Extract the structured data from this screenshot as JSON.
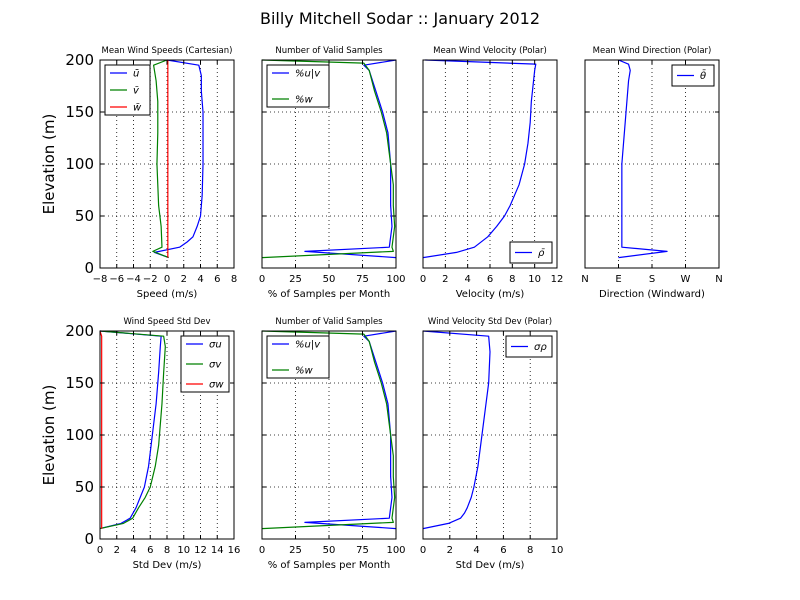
{
  "figure": {
    "title": "Billy Mitchell Sodar :: January 2012"
  },
  "colors": {
    "blue": "#0000ff",
    "green": "#008000",
    "red": "#ff0000",
    "grid": "#000000"
  },
  "chart_data": [
    {
      "id": "p1",
      "type": "line",
      "title": "Mean Wind Speeds (Cartesian)",
      "xlabel": "Speed (m/s)",
      "ylabel": "Elevation (m)",
      "xlim": [
        -8,
        8
      ],
      "ylim": [
        0,
        200
      ],
      "xticks": [
        -8,
        -6,
        -4,
        -2,
        0,
        2,
        4,
        6,
        8
      ],
      "xtick_labels": [
        "−8",
        "−6",
        "−4",
        "−2",
        "0",
        "2",
        "4",
        "6",
        "8"
      ],
      "yticks": [
        0,
        50,
        100,
        150,
        200
      ],
      "ytick_labels": [
        "0",
        "50",
        "100",
        "150",
        "200"
      ],
      "grid": true,
      "legend": "top-left",
      "series": [
        {
          "name": "ū",
          "color": "blue",
          "points": [
            [
              0.2,
              10
            ],
            [
              -1.5,
              15
            ],
            [
              1.5,
              20
            ],
            [
              2.4,
              25
            ],
            [
              3.1,
              30
            ],
            [
              3.6,
              40
            ],
            [
              4,
              50
            ],
            [
              4.2,
              70
            ],
            [
              4.3,
              100
            ],
            [
              4.3,
              130
            ],
            [
              4.3,
              150
            ],
            [
              4.1,
              170
            ],
            [
              4.1,
              185
            ],
            [
              3.8,
              195
            ],
            [
              0,
              200
            ]
          ]
        },
        {
          "name": "v̄",
          "color": "green",
          "points": [
            [
              0.2,
              10
            ],
            [
              -1.7,
              16
            ],
            [
              -0.6,
              20
            ],
            [
              -0.7,
              40
            ],
            [
              -1.0,
              60
            ],
            [
              -1.1,
              80
            ],
            [
              -1.2,
              100
            ],
            [
              -1.1,
              130
            ],
            [
              -1.1,
              160
            ],
            [
              -1.3,
              180
            ],
            [
              -1.6,
              195
            ],
            [
              0,
              200
            ]
          ]
        },
        {
          "name": "w̄",
          "color": "red",
          "points": [
            [
              0.1,
              10
            ],
            [
              0.1,
              50
            ],
            [
              0.1,
              100
            ],
            [
              0.1,
              150
            ],
            [
              0.1,
              200
            ]
          ]
        }
      ]
    },
    {
      "id": "p2",
      "type": "line",
      "title": "Number of Valid Samples",
      "xlabel": "% of Samples per Month",
      "ylabel": "",
      "xlim": [
        0,
        100
      ],
      "ylim": [
        0,
        200
      ],
      "xticks": [
        0,
        25,
        50,
        75,
        100
      ],
      "xtick_labels": [
        "0",
        "25",
        "50",
        "75",
        "100"
      ],
      "yticks": [
        0,
        50,
        100,
        150,
        200
      ],
      "ytick_labels": [],
      "grid": true,
      "legend": "top-left",
      "series": [
        {
          "name": "%u|v",
          "color": "blue",
          "points": [
            [
              100,
              10
            ],
            [
              32,
              16
            ],
            [
              95,
              20
            ],
            [
              97,
              40
            ],
            [
              96,
              60
            ],
            [
              96,
              80
            ],
            [
              96,
              100
            ],
            [
              94,
              130
            ],
            [
              90,
              150
            ],
            [
              85,
              170
            ],
            [
              80,
              190
            ],
            [
              76,
              195
            ],
            [
              100,
              200
            ]
          ]
        },
        {
          "name": "%w",
          "color": "green",
          "points": [
            [
              0,
              10
            ],
            [
              98,
              16
            ],
            [
              97,
              20
            ],
            [
              99,
              40
            ],
            [
              98,
              60
            ],
            [
              98,
              80
            ],
            [
              96,
              100
            ],
            [
              93,
              130
            ],
            [
              89,
              150
            ],
            [
              84,
              170
            ],
            [
              80,
              190
            ],
            [
              76,
              197
            ],
            [
              0,
              200
            ]
          ]
        }
      ]
    },
    {
      "id": "p3",
      "type": "line",
      "title": "Mean Wind Velocity (Polar)",
      "xlabel": "Velocity (m/s)",
      "ylabel": "",
      "xlim": [
        0,
        12
      ],
      "ylim": [
        0,
        200
      ],
      "xticks": [
        0,
        2,
        4,
        6,
        8,
        10,
        12
      ],
      "xtick_labels": [
        "0",
        "2",
        "4",
        "6",
        "8",
        "10",
        "12"
      ],
      "yticks": [
        0,
        50,
        100,
        150,
        200
      ],
      "ytick_labels": [],
      "grid": true,
      "legend": "bottom-right",
      "series": [
        {
          "name": "ρ̄",
          "color": "blue",
          "points": [
            [
              0,
              10
            ],
            [
              3,
              15
            ],
            [
              4.6,
              20
            ],
            [
              5.8,
              30
            ],
            [
              6.6,
              40
            ],
            [
              7.3,
              50
            ],
            [
              7.8,
              60
            ],
            [
              8.2,
              70
            ],
            [
              8.6,
              80
            ],
            [
              9.1,
              100
            ],
            [
              9.4,
              120
            ],
            [
              9.6,
              140
            ],
            [
              9.7,
              160
            ],
            [
              9.9,
              180
            ],
            [
              10,
              190
            ],
            [
              10.1,
              196
            ],
            [
              0.2,
              200
            ]
          ]
        }
      ]
    },
    {
      "id": "p4",
      "type": "line",
      "title": "Mean Wind Direction (Polar)",
      "xlabel": "Direction (Windward)",
      "ylabel": "",
      "xlim": [
        0,
        4
      ],
      "ylim": [
        0,
        200
      ],
      "xticks": [
        0,
        1,
        2,
        3,
        4
      ],
      "xtick_labels": [
        "N",
        "E",
        "S",
        "W",
        "N"
      ],
      "yticks": [
        0,
        50,
        100,
        150,
        200
      ],
      "ytick_labels": [],
      "grid": true,
      "legend": "top-right",
      "series": [
        {
          "name": "θ̄",
          "color": "blue",
          "points": [
            [
              1.0,
              10
            ],
            [
              2.45,
              16
            ],
            [
              1.1,
              20
            ],
            [
              1.1,
              40
            ],
            [
              1.1,
              60
            ],
            [
              1.1,
              80
            ],
            [
              1.1,
              100
            ],
            [
              1.15,
              120
            ],
            [
              1.2,
              140
            ],
            [
              1.25,
              160
            ],
            [
              1.3,
              180
            ],
            [
              1.35,
              190
            ],
            [
              1.3,
              196
            ],
            [
              1.0,
              200
            ]
          ]
        }
      ]
    },
    {
      "id": "p5",
      "type": "line",
      "title": "Wind Speed Std Dev",
      "xlabel": "Std Dev (m/s)",
      "ylabel": "Elevation (m)",
      "xlim": [
        0,
        16
      ],
      "ylim": [
        0,
        200
      ],
      "xticks": [
        0,
        2,
        4,
        6,
        8,
        10,
        12,
        14,
        16
      ],
      "xtick_labels": [
        "0",
        "2",
        "4",
        "6",
        "8",
        "10",
        "12",
        "14",
        "16"
      ],
      "yticks": [
        0,
        50,
        100,
        150,
        200
      ],
      "ytick_labels": [
        "0",
        "50",
        "100",
        "150",
        "200"
      ],
      "grid": true,
      "legend": "top-right",
      "series": [
        {
          "name": "σu",
          "color": "blue",
          "points": [
            [
              0,
              10
            ],
            [
              2.5,
              15
            ],
            [
              3.6,
              20
            ],
            [
              4.3,
              30
            ],
            [
              4.8,
              40
            ],
            [
              5.3,
              50
            ],
            [
              5.8,
              70
            ],
            [
              6.1,
              90
            ],
            [
              6.4,
              110
            ],
            [
              6.7,
              130
            ],
            [
              7.0,
              160
            ],
            [
              7.2,
              185
            ],
            [
              7.3,
              195
            ],
            [
              0,
              200
            ]
          ]
        },
        {
          "name": "σv",
          "color": "green",
          "points": [
            [
              0,
              10
            ],
            [
              2.8,
              15
            ],
            [
              3.9,
              20
            ],
            [
              4.6,
              30
            ],
            [
              5.4,
              40
            ],
            [
              6.0,
              50
            ],
            [
              6.6,
              70
            ],
            [
              7.0,
              90
            ],
            [
              7.2,
              110
            ],
            [
              7.4,
              130
            ],
            [
              7.6,
              160
            ],
            [
              7.8,
              185
            ],
            [
              7.6,
              195
            ],
            [
              0,
              200
            ]
          ]
        },
        {
          "name": "σw",
          "color": "red",
          "points": [
            [
              0.2,
              10
            ],
            [
              0.2,
              50
            ],
            [
              0.2,
              100
            ],
            [
              0.2,
              150
            ],
            [
              0.2,
              195
            ],
            [
              0,
              200
            ]
          ]
        }
      ]
    },
    {
      "id": "p6",
      "type": "line",
      "title": "Number of Valid Samples",
      "xlabel": "% of Samples per Month",
      "ylabel": "",
      "xlim": [
        0,
        100
      ],
      "ylim": [
        0,
        200
      ],
      "xticks": [
        0,
        25,
        50,
        75,
        100
      ],
      "xtick_labels": [
        "0",
        "25",
        "50",
        "75",
        "100"
      ],
      "yticks": [
        0,
        50,
        100,
        150,
        200
      ],
      "ytick_labels": [],
      "grid": true,
      "legend": "top-left",
      "series": [
        {
          "name": "%u|v",
          "color": "blue",
          "points": [
            [
              100,
              10
            ],
            [
              32,
              16
            ],
            [
              95,
              20
            ],
            [
              97,
              40
            ],
            [
              96,
              60
            ],
            [
              96,
              80
            ],
            [
              96,
              100
            ],
            [
              94,
              130
            ],
            [
              90,
              150
            ],
            [
              85,
              170
            ],
            [
              80,
              190
            ],
            [
              76,
              195
            ],
            [
              100,
              200
            ]
          ]
        },
        {
          "name": "%w",
          "color": "green",
          "points": [
            [
              0,
              10
            ],
            [
              98,
              16
            ],
            [
              97,
              20
            ],
            [
              99,
              40
            ],
            [
              98,
              60
            ],
            [
              98,
              80
            ],
            [
              96,
              100
            ],
            [
              93,
              130
            ],
            [
              89,
              150
            ],
            [
              84,
              170
            ],
            [
              80,
              190
            ],
            [
              76,
              197
            ],
            [
              0,
              200
            ]
          ]
        }
      ]
    },
    {
      "id": "p7",
      "type": "line",
      "title": "Wind Velocity Std Dev (Polar)",
      "xlabel": "Std Dev (m/s)",
      "ylabel": "",
      "xlim": [
        0,
        10
      ],
      "ylim": [
        0,
        200
      ],
      "xticks": [
        0,
        2,
        4,
        6,
        8,
        10
      ],
      "xtick_labels": [
        "0",
        "2",
        "4",
        "6",
        "8",
        "10"
      ],
      "yticks": [
        0,
        50,
        100,
        150,
        200
      ],
      "ytick_labels": [],
      "grid": true,
      "legend": "top-right",
      "series": [
        {
          "name": "σρ",
          "color": "blue",
          "points": [
            [
              0,
              10
            ],
            [
              1.9,
              15
            ],
            [
              2.8,
              20
            ],
            [
              3.1,
              25
            ],
            [
              3.3,
              30
            ],
            [
              3.6,
              40
            ],
            [
              3.8,
              50
            ],
            [
              4.1,
              70
            ],
            [
              4.4,
              100
            ],
            [
              4.7,
              130
            ],
            [
              4.9,
              150
            ],
            [
              5.0,
              180
            ],
            [
              4.9,
              195
            ],
            [
              0,
              200
            ]
          ]
        }
      ]
    }
  ]
}
